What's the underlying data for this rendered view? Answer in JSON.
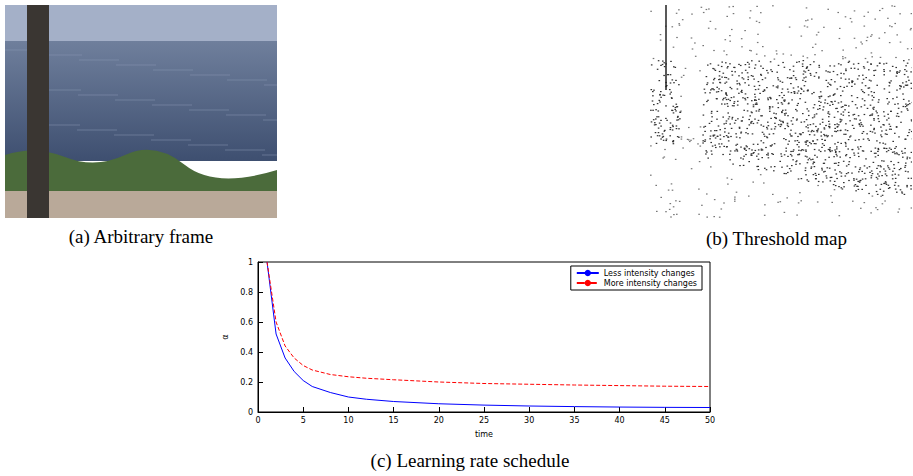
{
  "chart_data": {
    "type": "line",
    "xlabel": "time",
    "ylabel": "α",
    "xlim": [
      0,
      50
    ],
    "xticks": [
      0,
      5,
      10,
      15,
      20,
      25,
      30,
      35,
      40,
      45,
      50
    ],
    "ylim": [
      0,
      1
    ],
    "yticks": [
      0,
      0.2,
      0.4,
      0.6,
      0.8,
      1
    ],
    "grid": false,
    "legend": "upper right",
    "x": [
      1,
      2,
      3,
      4,
      5,
      6,
      8,
      10,
      12,
      15,
      20,
      25,
      30,
      35,
      40,
      45,
      50
    ],
    "series": [
      {
        "name": "Less intensity changes",
        "color": "#0000ff",
        "line_style": "solid",
        "marker": "none",
        "values": [
          1,
          0.52,
          0.36,
          0.27,
          0.21,
          0.17,
          0.13,
          0.1,
          0.085,
          0.07,
          0.055,
          0.046,
          0.04,
          0.036,
          0.033,
          0.031,
          0.03
        ]
      },
      {
        "name": "More intensity changes",
        "color": "#ff0000",
        "line_style": "dashed",
        "marker": "none",
        "values": [
          1,
          0.6,
          0.44,
          0.36,
          0.31,
          0.28,
          0.25,
          0.235,
          0.225,
          0.215,
          0.2,
          0.19,
          0.185,
          0.18,
          0.176,
          0.172,
          0.17
        ]
      }
    ]
  },
  "captions": {
    "a": "(a) Arbitrary frame",
    "b": "(b) Threshold map",
    "c": "(c) Learning rate schedule"
  }
}
